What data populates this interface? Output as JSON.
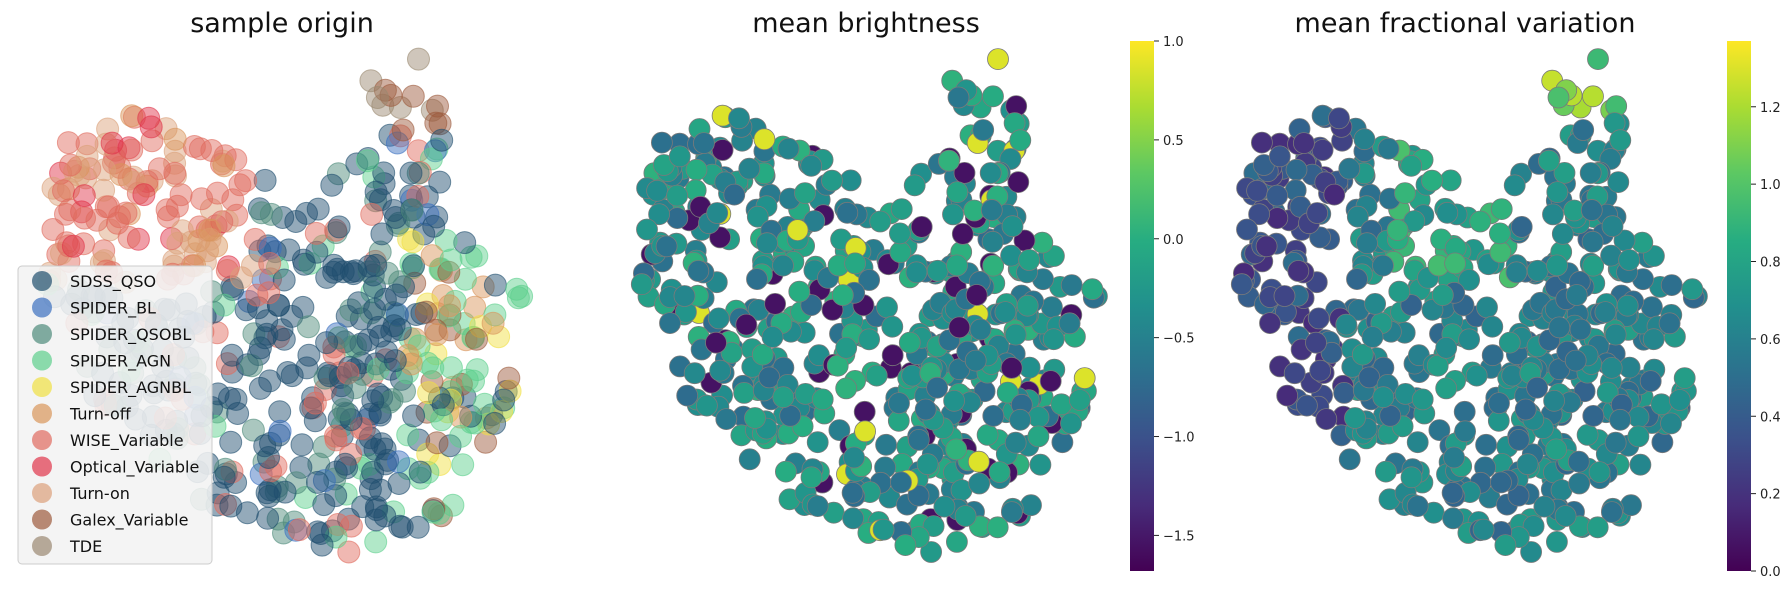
{
  "chart_data": [
    {
      "type": "scatter",
      "title": "sample origin",
      "xlabel": "",
      "ylabel": "",
      "axes_visible": false,
      "legend": {
        "placement": "lower-left",
        "entries": [
          {
            "name": "SDSS_QSO",
            "color": "#1f4e6e"
          },
          {
            "name": "SPIDER_BL",
            "color": "#3a6fbf"
          },
          {
            "name": "SPIDER_QSOBL",
            "color": "#4d8a7a"
          },
          {
            "name": "SPIDER_AGN",
            "color": "#5ccf8c"
          },
          {
            "name": "SPIDER_AGNBL",
            "color": "#f0e042"
          },
          {
            "name": "Turn-off",
            "color": "#d9955a"
          },
          {
            "name": "WISE_Variable",
            "color": "#e06a5e"
          },
          {
            "name": "Optical_Variable",
            "color": "#e0344a"
          },
          {
            "name": "Turn-on",
            "color": "#dba07a"
          },
          {
            "name": "Galex_Variable",
            "color": "#9c5a3c"
          },
          {
            "name": "TDE",
            "color": "#9a8870"
          }
        ]
      }
    },
    {
      "type": "scatter",
      "title": "mean brightness",
      "axes_visible": false,
      "colorbar": {
        "colormap": "viridis",
        "range": [
          -1.68,
          1.0
        ],
        "ticks": [
          "1.0",
          "0.5",
          "0.0",
          "−0.5",
          "−1.0",
          "−1.5"
        ],
        "tick_values": [
          1.0,
          0.5,
          0.0,
          -0.5,
          -1.0,
          -1.5
        ]
      }
    },
    {
      "type": "scatter",
      "title": "mean fractional variation",
      "axes_visible": false,
      "colorbar": {
        "colormap": "viridis",
        "range": [
          0.0,
          1.37
        ],
        "ticks": [
          "1.2",
          "1.0",
          "0.8",
          "0.6",
          "0.4",
          "0.2",
          "0.0"
        ],
        "tick_values": [
          1.2,
          1.0,
          0.8,
          0.6,
          0.4,
          0.2,
          0.0
        ]
      }
    }
  ]
}
